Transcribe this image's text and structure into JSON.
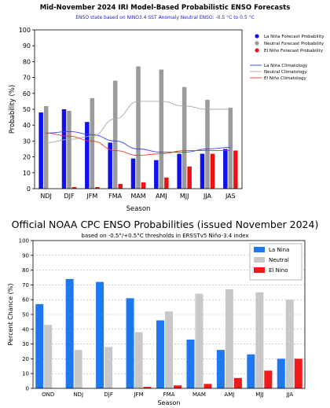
{
  "chart_data": [
    {
      "type": "bar",
      "title": "Mid-November 2024 IRI Model-Based Probabilistic ENSO Forecasts",
      "subtitle": "ENSO state based on NINO3.4 SST Anomaly Neutral ENSO: -0.5 °C to 0.5 °C",
      "xlabel": "Season",
      "ylabel": "Probability (%)",
      "ylim": [
        0,
        100
      ],
      "yticks": [
        0,
        10,
        20,
        30,
        40,
        50,
        60,
        70,
        80,
        90,
        100
      ],
      "categories": [
        "NDJ",
        "DJF",
        "JFM",
        "FMA",
        "MAM",
        "AMJ",
        "MJJ",
        "JJA",
        "JAS"
      ],
      "series": [
        {
          "name": "La Niña Forecast Probability",
          "color": "#1111ee",
          "values": [
            48,
            50,
            42,
            29,
            19,
            18,
            22,
            22,
            25
          ]
        },
        {
          "name": "Neutral Forecast Probability",
          "color": "#9a9a9a",
          "values": [
            52,
            49,
            57,
            68,
            77,
            75,
            64,
            56,
            51
          ]
        },
        {
          "name": "El Niño Forecast Probability",
          "color": "#ee1111",
          "values": [
            0,
            1,
            1,
            3,
            4,
            7,
            14,
            22,
            24
          ]
        }
      ],
      "lines": [
        {
          "name": "La Niña Climatology",
          "color": "#3344ee",
          "values": [
            35,
            36,
            34,
            30,
            25,
            23,
            23,
            25,
            26
          ]
        },
        {
          "name": "Neutral Climatology",
          "color": "#a8a8a8",
          "values": [
            29,
            31,
            33,
            44,
            55,
            55,
            52,
            50,
            50
          ]
        },
        {
          "name": "El Niño Climatology",
          "color": "#ee3333",
          "values": [
            35,
            33,
            30,
            24,
            21,
            22,
            24,
            24,
            24
          ]
        }
      ],
      "grid": false,
      "legend": "right"
    },
    {
      "type": "bar",
      "title": "Official NOAA CPC ENSO Probabilities (issued November 2024)",
      "subtitle": "based on -0.5°/+0.5°C thresholds in ERSSTv5 Niño-3.4 index",
      "xlabel": "Season",
      "ylabel": "Percent Chance (%)",
      "ylim": [
        0,
        100
      ],
      "yticks": [
        0,
        10,
        20,
        30,
        40,
        50,
        60,
        70,
        80,
        90,
        100
      ],
      "categories": [
        "OND",
        "NDJ",
        "DJF",
        "JFM",
        "FMA",
        "MAM",
        "AMJ",
        "MJJ",
        "JJA"
      ],
      "series": [
        {
          "name": "La Nina",
          "color": "#1e78f0",
          "values": [
            57,
            74,
            72,
            61,
            46,
            33,
            26,
            23,
            20
          ]
        },
        {
          "name": "Neutral",
          "color": "#c8c8c8",
          "values": [
            43,
            26,
            28,
            38,
            52,
            64,
            67,
            65,
            60
          ]
        },
        {
          "name": "El Nino",
          "color": "#f01a1a",
          "values": [
            0,
            0,
            0,
            1,
            2,
            3,
            7,
            12,
            20
          ]
        }
      ],
      "grid": true,
      "legend": "top-right"
    }
  ]
}
